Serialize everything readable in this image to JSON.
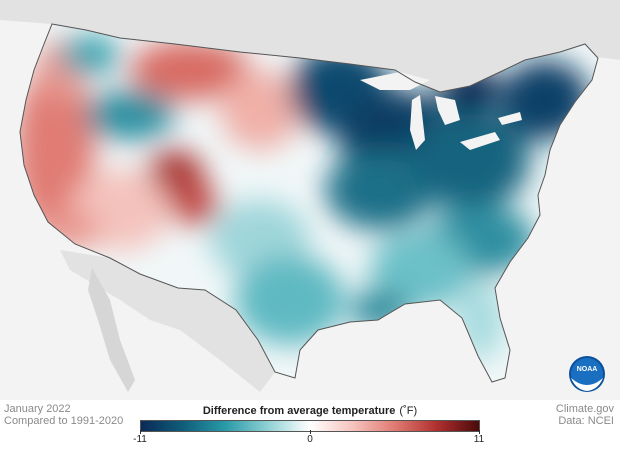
{
  "map": {
    "period": "January 2022",
    "baseline": "Compared to 1991-2020",
    "source": "Climate.gov",
    "data_credit": "Data: NCEI",
    "logo_text": "NOAA"
  },
  "legend": {
    "title": "Difference from average temperature",
    "unit": "(˚F)",
    "min_label": "-11",
    "mid_label": "0",
    "max_label": "11",
    "min": -11,
    "max": 11,
    "colors": [
      "#0b2a57",
      "#0f5e7a",
      "#2a9aa8",
      "#8fd0d4",
      "#ffffff",
      "#f6c4bf",
      "#e07b73",
      "#b0302e",
      "#4a0a0a"
    ]
  },
  "regions": [
    {
      "name": "West Coast / California",
      "anomaly": 4
    },
    {
      "name": "Northern Rockies / Idaho",
      "anomaly": -3
    },
    {
      "name": "Montana / High Plains",
      "anomaly": 4
    },
    {
      "name": "Colorado",
      "anomaly": 8
    },
    {
      "name": "Southwest",
      "anomaly": 2
    },
    {
      "name": "Texas / Southern Plains",
      "anomaly": -3
    },
    {
      "name": "Upper Midwest / Great Lakes",
      "anomaly": -10
    },
    {
      "name": "Ohio Valley / Mid-Atlantic",
      "anomaly": -6
    },
    {
      "name": "Northeast / New England",
      "anomaly": -9
    },
    {
      "name": "Southeast / Florida",
      "anomaly": -2
    }
  ]
}
